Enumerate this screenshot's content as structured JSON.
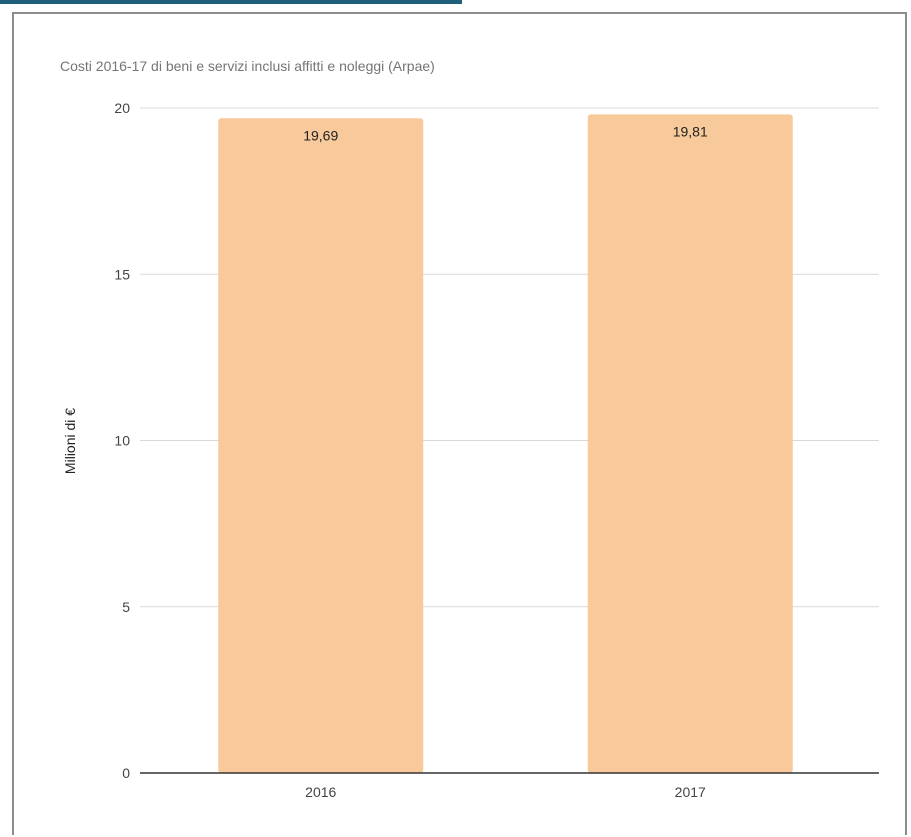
{
  "chart_data": {
    "type": "bar",
    "title": "Costi 2016-17 di beni e servizi inclusi affitti e noleggi (Arpae)",
    "xlabel": "",
    "ylabel": "Milioni di €",
    "categories": [
      "2016",
      "2017"
    ],
    "values": [
      19.69,
      19.81
    ],
    "data_labels": [
      "19,69",
      "19,81"
    ],
    "ylim": [
      0,
      20
    ],
    "yticks": [
      0,
      5,
      10,
      15,
      20
    ],
    "ytick_labels": [
      "0",
      "5",
      "10",
      "15",
      "20"
    ],
    "grid": true,
    "legend": "none",
    "bar_color": "#f8c99b",
    "grid_color": "#d9d9d9",
    "axis_color": "#333333"
  }
}
